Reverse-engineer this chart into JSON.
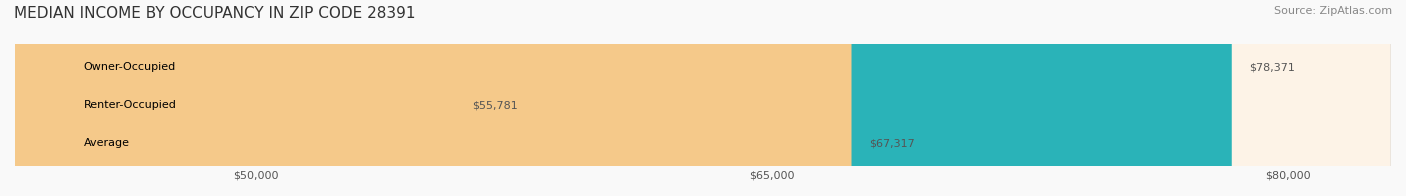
{
  "title": "MEDIAN INCOME BY OCCUPANCY IN ZIP CODE 28391",
  "source": "Source: ZipAtlas.com",
  "categories": [
    "Owner-Occupied",
    "Renter-Occupied",
    "Average"
  ],
  "values": [
    78371,
    55781,
    67317
  ],
  "bar_colors": [
    "#2ab3b8",
    "#c4a8d0",
    "#f5c98a"
  ],
  "bar_bg_colors": [
    "#e8f7f8",
    "#f3eef7",
    "#fdf3e7"
  ],
  "value_labels": [
    "$78,371",
    "$55,781",
    "$67,317"
  ],
  "xmin": 43000,
  "xmax": 83000,
  "xticks": [
    50000,
    65000,
    80000
  ],
  "xtick_labels": [
    "$50,000",
    "$65,000",
    "$80,000"
  ],
  "title_fontsize": 11,
  "source_fontsize": 8,
  "label_fontsize": 8,
  "tick_fontsize": 8,
  "background_color": "#f9f9f9",
  "bar_height": 0.55,
  "figsize": [
    14.06,
    1.96
  ],
  "dpi": 100
}
